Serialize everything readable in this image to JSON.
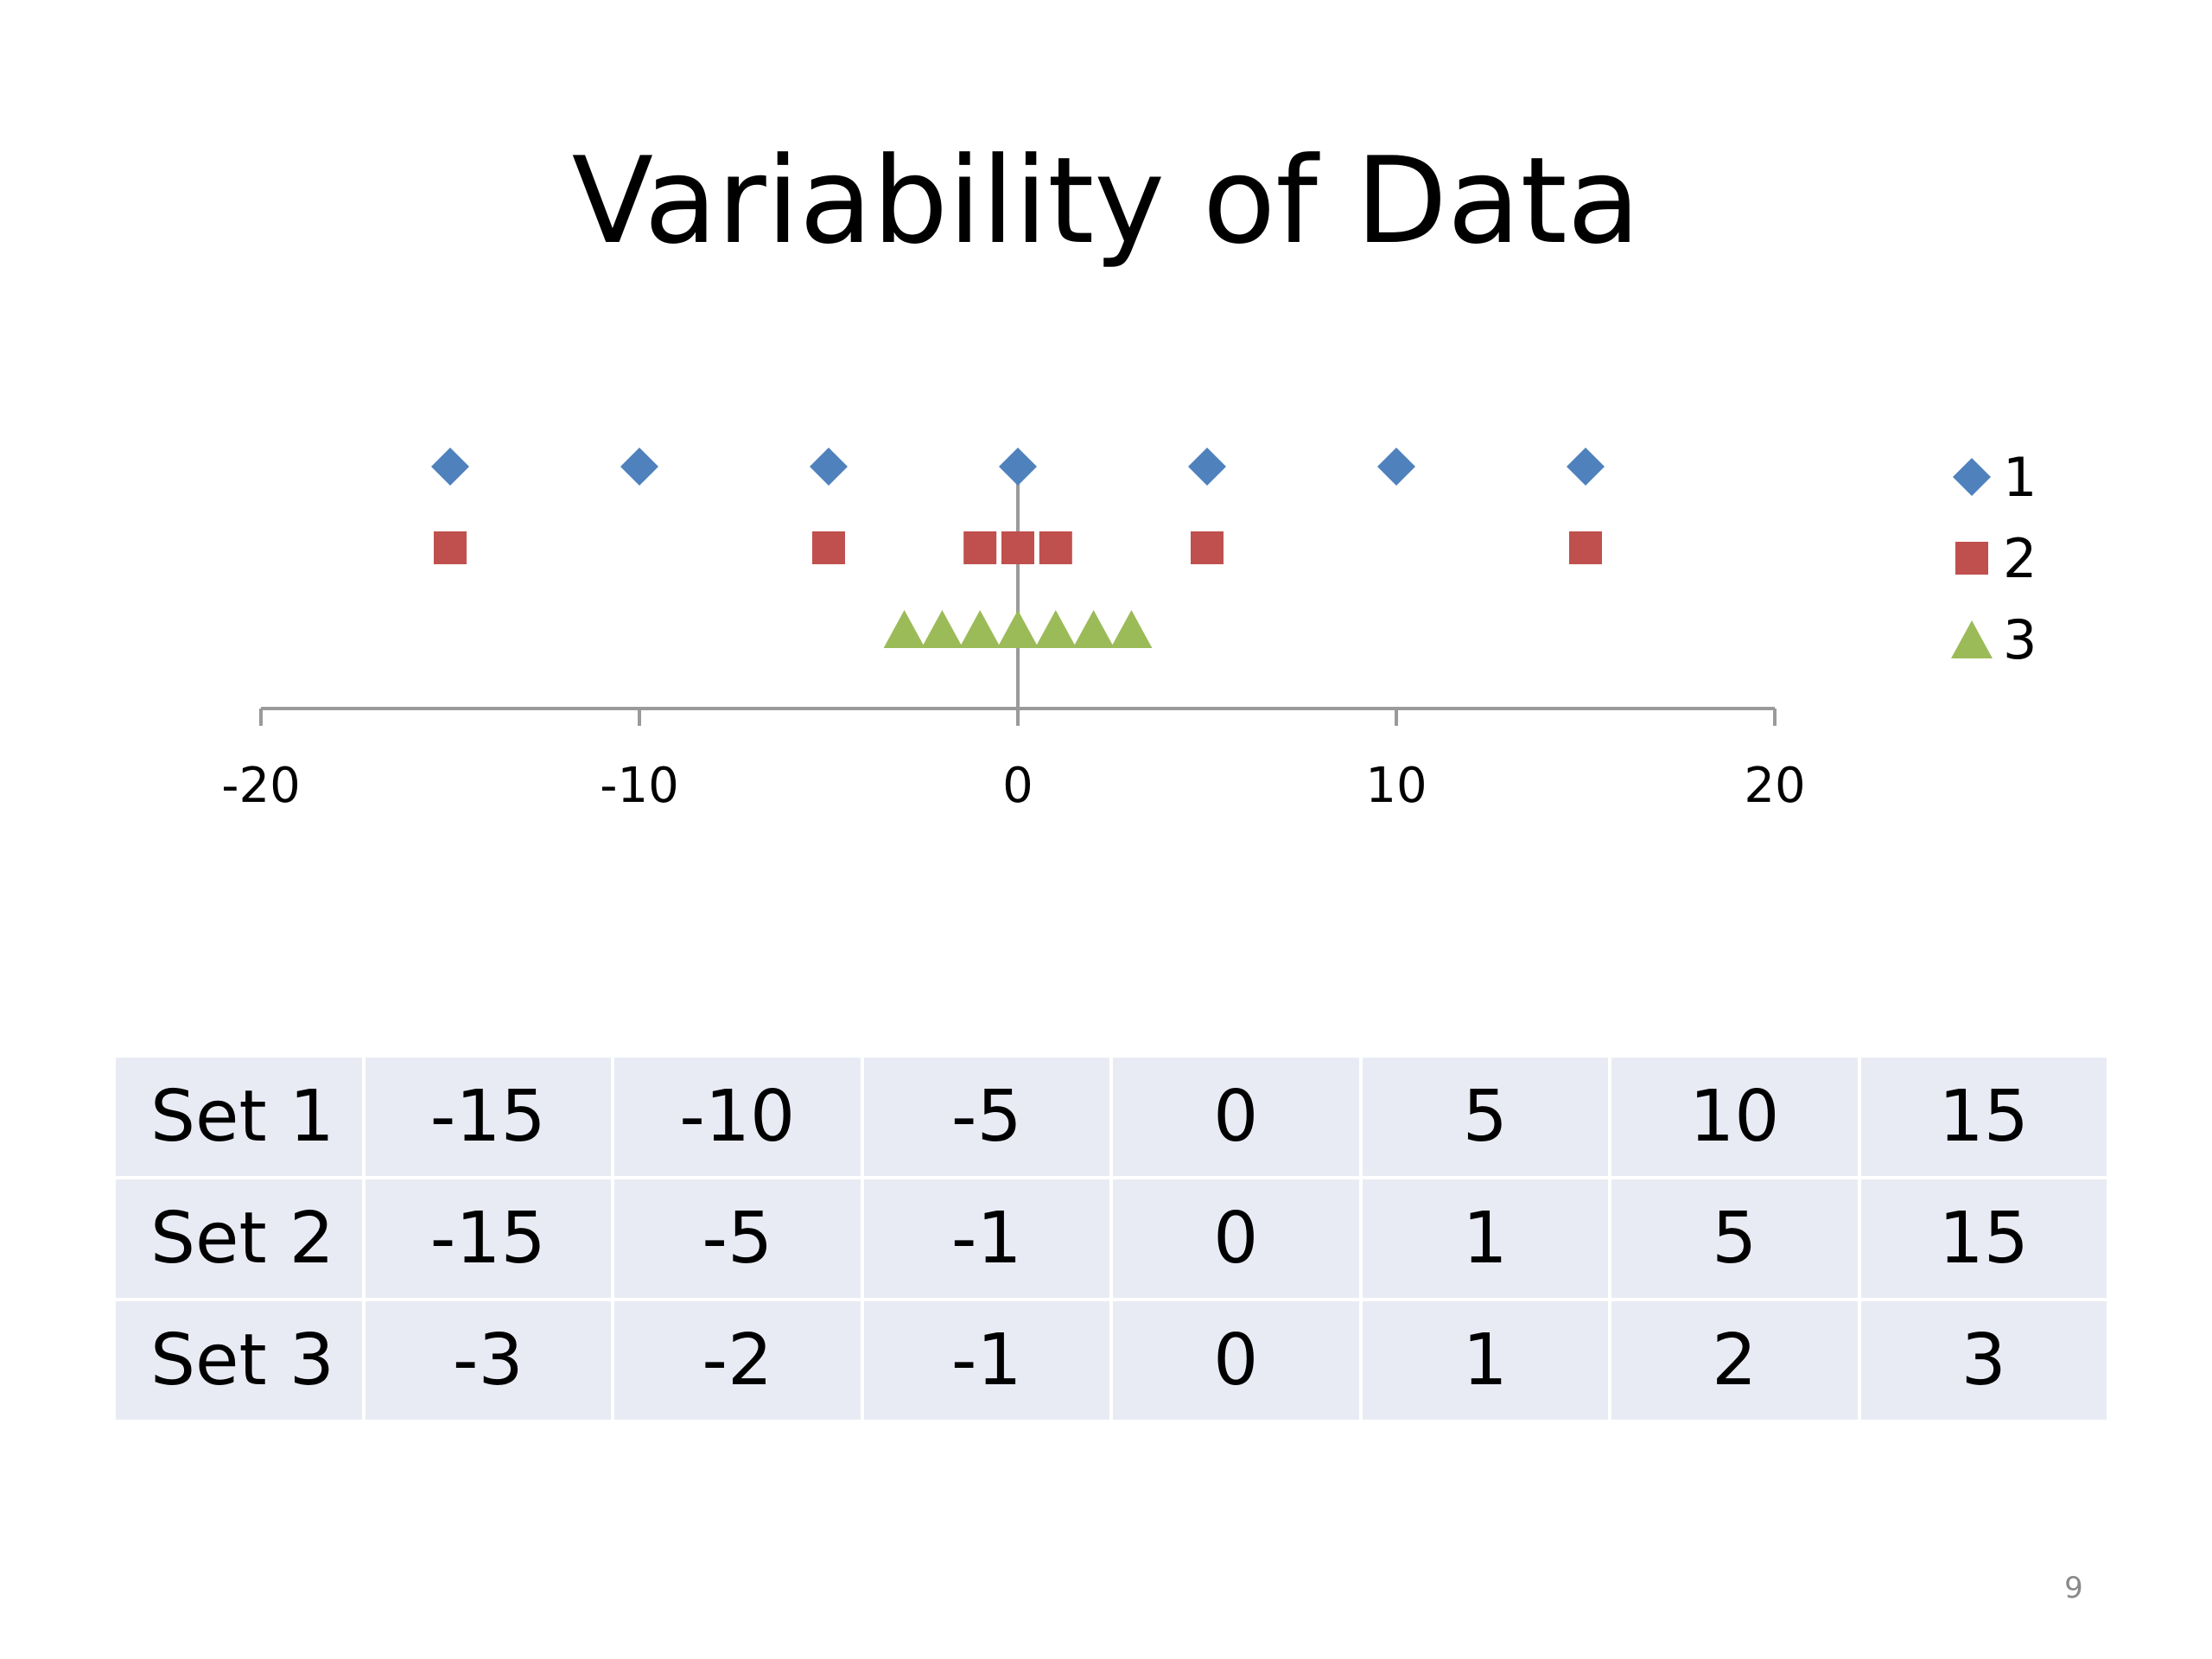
{
  "slide": {
    "title": "Variability of Data",
    "page_number": "9"
  },
  "chart_data": {
    "type": "scatter",
    "title": "Variability of Data",
    "xlabel": "",
    "ylabel": "",
    "xlim": [
      -20,
      20
    ],
    "xticks": [
      -20,
      -10,
      0,
      10,
      20
    ],
    "tick_labels": [
      "-20",
      "-10",
      "0",
      "10",
      "20"
    ],
    "legend_position": "right",
    "series": [
      {
        "name": "1",
        "marker": "diamond",
        "color": "#4f81bd",
        "level": 3,
        "x": [
          -15,
          -10,
          -5,
          0,
          5,
          10,
          15
        ]
      },
      {
        "name": "2",
        "marker": "square",
        "color": "#c0504d",
        "level": 2,
        "x": [
          -15,
          -5,
          -1,
          0,
          1,
          5,
          15
        ]
      },
      {
        "name": "3",
        "marker": "triangle",
        "color": "#9bbb59",
        "level": 1,
        "x": [
          -3,
          -2,
          -1,
          0,
          1,
          2,
          3
        ]
      }
    ]
  },
  "table": {
    "rows": [
      {
        "label": "Set 1",
        "values": [
          "-15",
          "-10",
          "-5",
          "0",
          "5",
          "10",
          "15"
        ]
      },
      {
        "label": "Set 2",
        "values": [
          "-15",
          "-5",
          "-1",
          "0",
          "1",
          "5",
          "15"
        ]
      },
      {
        "label": "Set 3",
        "values": [
          "-3",
          "-2",
          "-1",
          "0",
          "1",
          "2",
          "3"
        ]
      }
    ]
  }
}
